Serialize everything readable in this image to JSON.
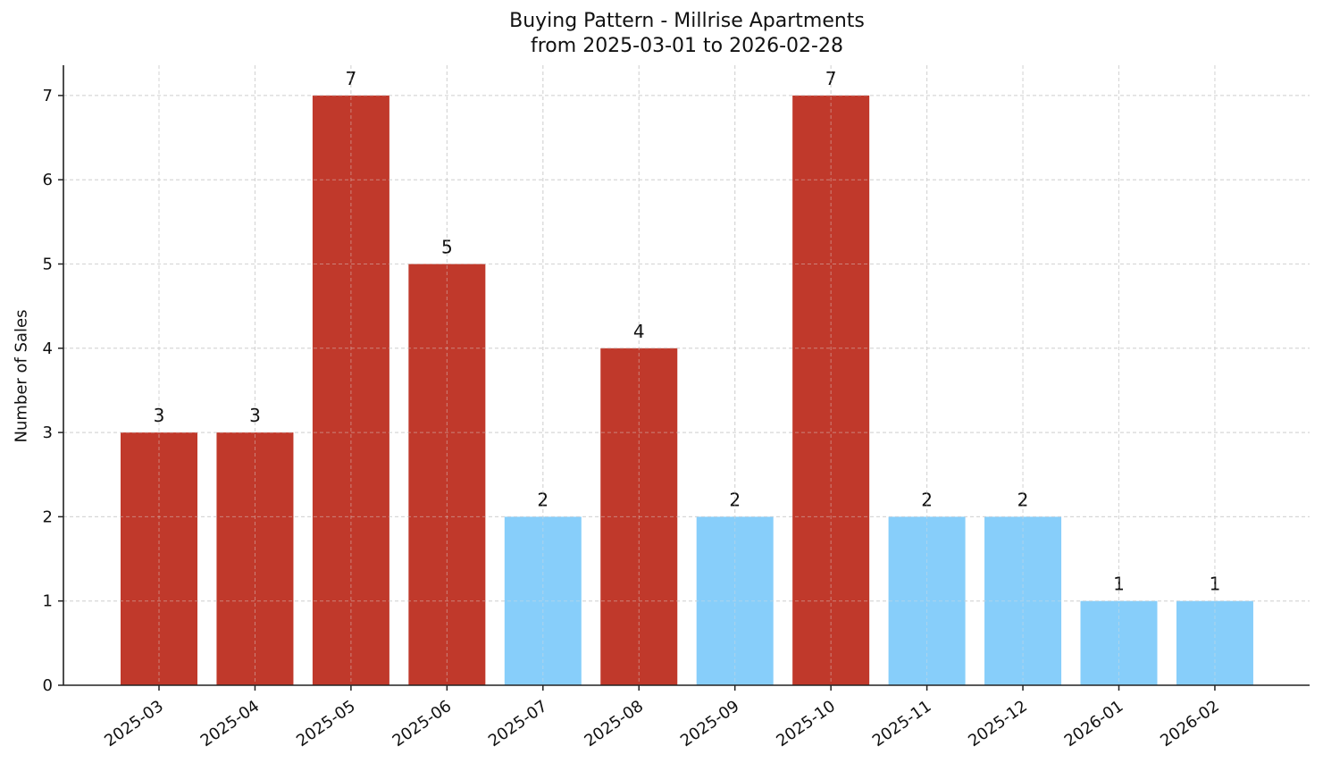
{
  "chart": {
    "title_line1": "Buying Pattern - Millrise Apartments",
    "title_line2": "from 2025-03-01 to 2026-02-28",
    "ylabel": "Number of Sales",
    "colors": {
      "high": "#c0392b",
      "low": "#87cefa"
    }
  },
  "chart_data": {
    "type": "bar",
    "title": "Buying Pattern - Millrise Apartments\nfrom 2025-03-01 to 2026-02-28",
    "xlabel": "",
    "ylabel": "Number of Sales",
    "categories": [
      "2025-03",
      "2025-04",
      "2025-05",
      "2025-06",
      "2025-07",
      "2025-08",
      "2025-09",
      "2025-10",
      "2025-11",
      "2025-12",
      "2026-01",
      "2026-02"
    ],
    "values": [
      3,
      3,
      7,
      5,
      2,
      4,
      2,
      7,
      2,
      2,
      1,
      1
    ],
    "bar_colors": [
      "#c0392b",
      "#c0392b",
      "#c0392b",
      "#c0392b",
      "#87cefa",
      "#c0392b",
      "#87cefa",
      "#c0392b",
      "#87cefa",
      "#87cefa",
      "#87cefa",
      "#87cefa"
    ],
    "data_labels": [
      "3",
      "3",
      "7",
      "5",
      "2",
      "4",
      "2",
      "7",
      "2",
      "2",
      "1",
      "1"
    ],
    "yticks": [
      0,
      1,
      2,
      3,
      4,
      5,
      6,
      7
    ],
    "ylim": [
      0,
      7.35
    ],
    "grid": true,
    "legend": null
  }
}
